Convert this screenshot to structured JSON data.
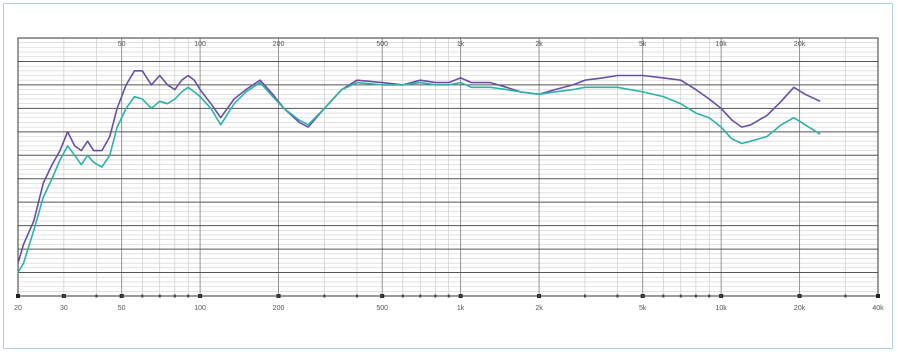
{
  "chart_data": {
    "type": "line",
    "title": "",
    "xlabel": "",
    "ylabel": "",
    "x_scale": "log",
    "xlim": [
      20,
      40000
    ],
    "ylim": [
      -10,
      100
    ],
    "grid": true,
    "legend": "none",
    "top_tick_labels": [
      {
        "x": 50,
        "label": "50"
      },
      {
        "x": 100,
        "label": "100"
      },
      {
        "x": 200,
        "label": "200"
      },
      {
        "x": 500,
        "label": "500"
      },
      {
        "x": 1000,
        "label": "1k"
      },
      {
        "x": 2000,
        "label": "2k"
      },
      {
        "x": 5000,
        "label": "5k"
      },
      {
        "x": 10000,
        "label": "10k"
      },
      {
        "x": 20000,
        "label": "20k"
      }
    ],
    "bottom_tick_labels": [
      {
        "x": 20,
        "label": "20"
      },
      {
        "x": 30,
        "label": "30"
      },
      {
        "x": 50,
        "label": "50"
      },
      {
        "x": 100,
        "label": "100"
      },
      {
        "x": 200,
        "label": "200"
      },
      {
        "x": 500,
        "label": "500"
      },
      {
        "x": 1000,
        "label": "1k"
      },
      {
        "x": 2000,
        "label": "2k"
      },
      {
        "x": 5000,
        "label": "5k"
      },
      {
        "x": 10000,
        "label": "10k"
      },
      {
        "x": 20000,
        "label": "20k"
      },
      {
        "x": 40000,
        "label": "40k"
      }
    ],
    "series": [
      {
        "color": "#6a4fa8",
        "points": [
          [
            20,
            4
          ],
          [
            21,
            12
          ],
          [
            23,
            22
          ],
          [
            25,
            38
          ],
          [
            27,
            46
          ],
          [
            29,
            52
          ],
          [
            31,
            60
          ],
          [
            33,
            54
          ],
          [
            35,
            52
          ],
          [
            37,
            56
          ],
          [
            39,
            52
          ],
          [
            42,
            52
          ],
          [
            45,
            58
          ],
          [
            48,
            70
          ],
          [
            52,
            80
          ],
          [
            56,
            86
          ],
          [
            60,
            86
          ],
          [
            65,
            80
          ],
          [
            70,
            84
          ],
          [
            75,
            80
          ],
          [
            80,
            78
          ],
          [
            85,
            82
          ],
          [
            90,
            84
          ],
          [
            95,
            82
          ],
          [
            100,
            78
          ],
          [
            110,
            72
          ],
          [
            120,
            66
          ],
          [
            135,
            74
          ],
          [
            150,
            78
          ],
          [
            170,
            82
          ],
          [
            190,
            76
          ],
          [
            210,
            70
          ],
          [
            240,
            64
          ],
          [
            260,
            62
          ],
          [
            300,
            70
          ],
          [
            350,
            78
          ],
          [
            400,
            82
          ],
          [
            500,
            81
          ],
          [
            600,
            80
          ],
          [
            700,
            82
          ],
          [
            800,
            81
          ],
          [
            900,
            81
          ],
          [
            1000,
            83
          ],
          [
            1100,
            81
          ],
          [
            1300,
            81
          ],
          [
            1500,
            79
          ],
          [
            1700,
            77
          ],
          [
            2000,
            76
          ],
          [
            2300,
            78
          ],
          [
            2700,
            80
          ],
          [
            3000,
            82
          ],
          [
            3500,
            83
          ],
          [
            4000,
            84
          ],
          [
            5000,
            84
          ],
          [
            6000,
            83
          ],
          [
            7000,
            82
          ],
          [
            8000,
            78
          ],
          [
            9000,
            74
          ],
          [
            10000,
            70
          ],
          [
            11000,
            65
          ],
          [
            12000,
            62
          ],
          [
            13000,
            63
          ],
          [
            15000,
            67
          ],
          [
            17000,
            73
          ],
          [
            19000,
            79
          ],
          [
            21000,
            76
          ],
          [
            24000,
            73
          ]
        ]
      },
      {
        "color": "#2bb3a8",
        "points": [
          [
            20,
            0
          ],
          [
            21,
            4
          ],
          [
            23,
            18
          ],
          [
            25,
            32
          ],
          [
            27,
            40
          ],
          [
            29,
            48
          ],
          [
            31,
            54
          ],
          [
            33,
            50
          ],
          [
            35,
            46
          ],
          [
            37,
            50
          ],
          [
            39,
            47
          ],
          [
            42,
            45
          ],
          [
            45,
            50
          ],
          [
            48,
            62
          ],
          [
            52,
            70
          ],
          [
            56,
            75
          ],
          [
            60,
            74
          ],
          [
            65,
            70
          ],
          [
            70,
            73
          ],
          [
            75,
            72
          ],
          [
            80,
            74
          ],
          [
            85,
            77
          ],
          [
            90,
            79
          ],
          [
            95,
            77
          ],
          [
            100,
            75
          ],
          [
            110,
            70
          ],
          [
            120,
            63
          ],
          [
            135,
            72
          ],
          [
            150,
            77
          ],
          [
            170,
            81
          ],
          [
            190,
            75
          ],
          [
            210,
            70
          ],
          [
            240,
            65
          ],
          [
            260,
            63
          ],
          [
            300,
            70
          ],
          [
            350,
            78
          ],
          [
            400,
            81
          ],
          [
            500,
            80
          ],
          [
            600,
            80
          ],
          [
            700,
            81
          ],
          [
            800,
            80
          ],
          [
            900,
            80
          ],
          [
            1000,
            81
          ],
          [
            1100,
            79
          ],
          [
            1300,
            79
          ],
          [
            1500,
            78
          ],
          [
            1700,
            77
          ],
          [
            2000,
            76
          ],
          [
            2300,
            77
          ],
          [
            2700,
            78
          ],
          [
            3000,
            79
          ],
          [
            3500,
            79
          ],
          [
            4000,
            79
          ],
          [
            5000,
            77
          ],
          [
            6000,
            75
          ],
          [
            7000,
            72
          ],
          [
            8000,
            68
          ],
          [
            9000,
            66
          ],
          [
            10000,
            62
          ],
          [
            11000,
            57
          ],
          [
            12000,
            55
          ],
          [
            13000,
            56
          ],
          [
            15000,
            58
          ],
          [
            17000,
            63
          ],
          [
            19000,
            66
          ],
          [
            21000,
            63
          ],
          [
            24000,
            59
          ]
        ]
      }
    ]
  }
}
